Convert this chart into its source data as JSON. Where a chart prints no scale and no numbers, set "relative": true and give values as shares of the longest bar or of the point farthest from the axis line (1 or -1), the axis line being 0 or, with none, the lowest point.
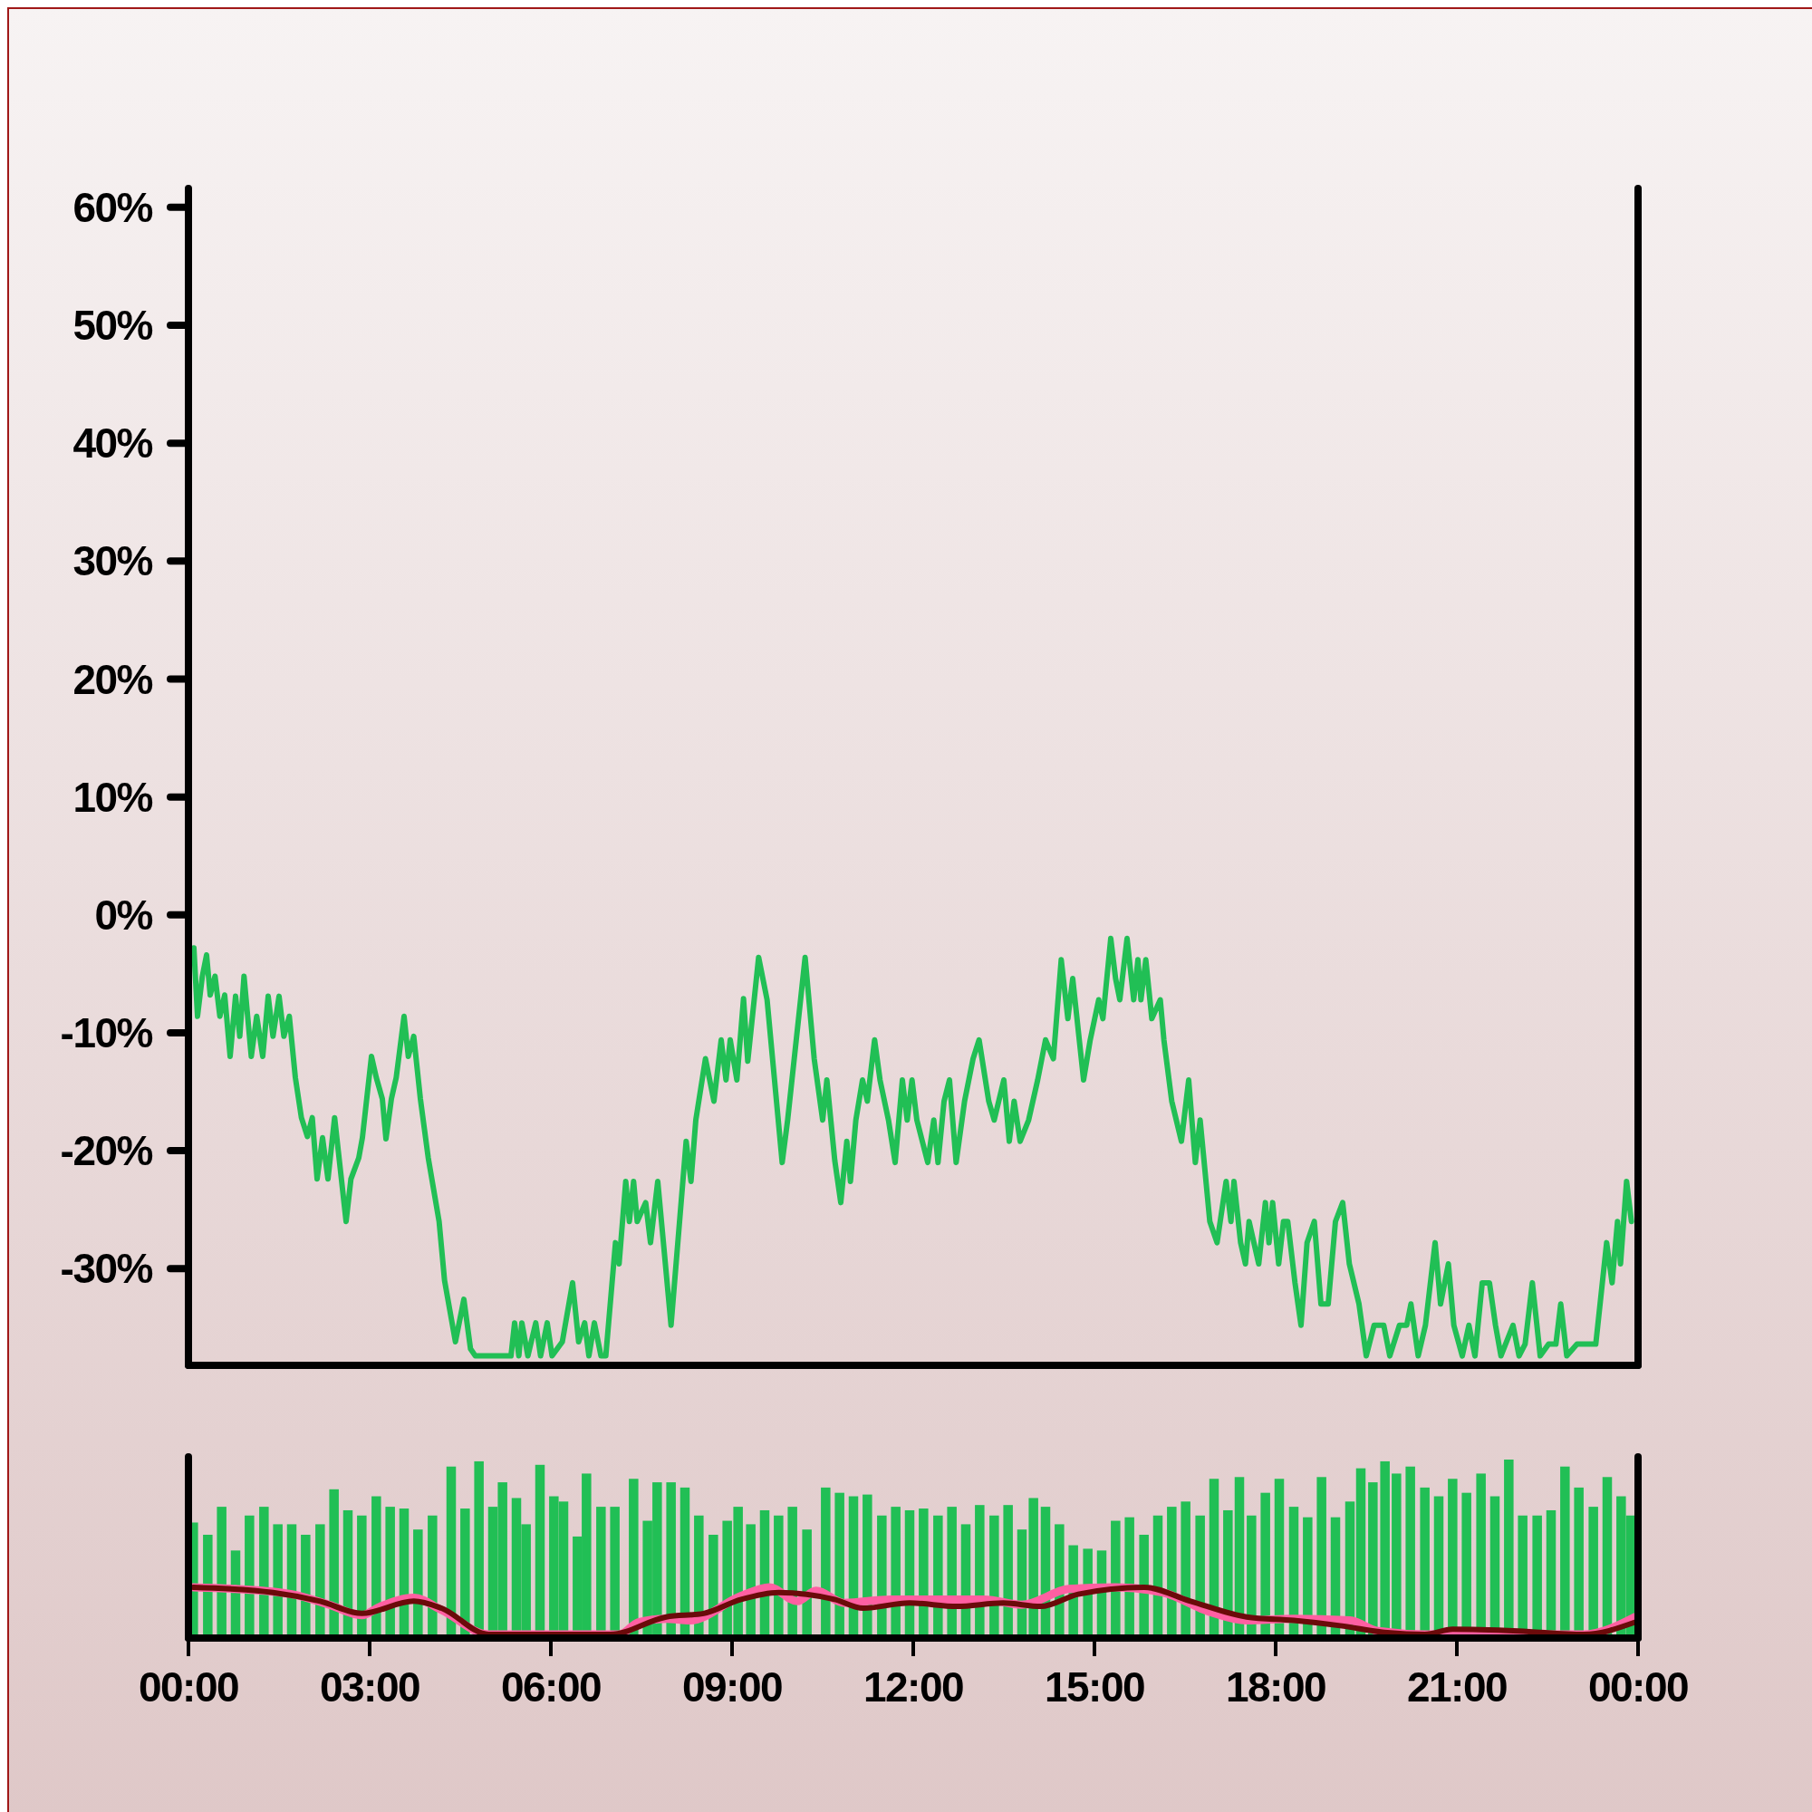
{
  "chart_data": [
    {
      "type": "line",
      "xlim": [
        0,
        24
      ],
      "ylim": [
        -38.2,
        61.6
      ],
      "yticks": [
        {
          "value": 60,
          "label": "60%"
        },
        {
          "value": 50,
          "label": "50%"
        },
        {
          "value": 40,
          "label": "40%"
        },
        {
          "value": 30,
          "label": "30%"
        },
        {
          "value": 20,
          "label": "20%"
        },
        {
          "value": 10,
          "label": "10%"
        },
        {
          "value": 0,
          "label": "0%"
        },
        {
          "value": -10,
          "label": "-10%"
        },
        {
          "value": -20,
          "label": "-20%"
        },
        {
          "value": -30,
          "label": "-30%"
        }
      ],
      "tick_labels": "y",
      "series": [
        {
          "color": "#21bf55",
          "x": [
            0.09,
            0.15,
            0.23,
            0.3,
            0.36,
            0.44,
            0.52,
            0.6,
            0.69,
            0.78,
            0.85,
            0.92,
            1.04,
            1.13,
            1.23,
            1.32,
            1.4,
            1.5,
            1.58,
            1.67,
            1.77,
            1.87,
            1.97,
            2.05,
            2.13,
            2.22,
            2.31,
            2.42,
            2.61,
            2.69,
            2.82,
            2.88,
            3.03,
            3.11,
            3.21,
            3.27,
            3.36,
            3.44,
            3.57,
            3.64,
            3.73,
            3.84,
            3.97,
            4.15,
            4.24,
            4.42,
            4.56,
            4.67,
            4.75,
            5.34,
            5.4,
            5.47,
            5.52,
            5.62,
            5.75,
            5.83,
            5.94,
            6.02,
            6.19,
            6.36,
            6.46,
            6.56,
            6.63,
            6.72,
            6.83,
            6.91,
            7.07,
            7.13,
            7.24,
            7.3,
            7.37,
            7.43,
            7.57,
            7.65,
            7.77,
            7.99,
            8.24,
            8.32,
            8.4,
            8.56,
            8.7,
            8.82,
            8.9,
            8.97,
            9.08,
            9.19,
            9.26,
            9.44,
            9.58,
            9.83,
            9.92,
            10.21,
            10.36,
            10.5,
            10.57,
            10.7,
            10.8,
            10.9,
            10.96,
            11.05,
            11.16,
            11.24,
            11.36,
            11.45,
            11.59,
            11.7,
            11.82,
            11.9,
            11.98,
            12.06,
            12.24,
            12.34,
            12.41,
            12.51,
            12.6,
            12.71,
            12.85,
            12.99,
            13.09,
            13.25,
            13.34,
            13.5,
            13.59,
            13.67,
            13.77,
            13.91,
            14.06,
            14.19,
            14.32,
            14.45,
            14.56,
            14.64,
            14.82,
            14.93,
            15.07,
            15.14,
            15.27,
            15.35,
            15.42,
            15.54,
            15.65,
            15.72,
            15.77,
            15.85,
            15.95,
            16.09,
            16.15,
            16.28,
            16.44,
            16.56,
            16.67,
            16.75,
            16.91,
            17.03,
            17.18,
            17.26,
            17.31,
            17.42,
            17.5,
            17.56,
            17.72,
            17.83,
            17.89,
            17.95,
            18.05,
            18.13,
            18.2,
            18.32,
            18.42,
            18.52,
            18.64,
            18.75,
            18.87,
            18.99,
            19.11,
            19.22,
            19.38,
            19.5,
            19.63,
            19.79,
            19.89,
            20.05,
            20.17,
            20.24,
            20.36,
            20.48,
            20.64,
            20.73,
            20.86,
            20.95,
            21.09,
            21.2,
            21.3,
            21.42,
            21.54,
            21.64,
            21.73,
            21.93,
            22.03,
            22.13,
            22.25,
            22.38,
            22.52,
            22.64,
            22.72,
            22.82,
            22.99,
            23.3,
            23.48,
            23.57,
            23.66,
            23.71,
            23.81,
            23.89
          ],
          "values": [
            -2.8,
            -8.6,
            -5.2,
            -3.4,
            -6.8,
            -5.2,
            -8.6,
            -6.8,
            -12,
            -6.9,
            -10.3,
            -5.2,
            -12,
            -8.6,
            -12,
            -6.9,
            -10.3,
            -6.9,
            -10.3,
            -8.6,
            -13.8,
            -17.2,
            -18.8,
            -17.2,
            -22.4,
            -18.9,
            -22.4,
            -17.2,
            -26,
            -22.4,
            -20.6,
            -18.9,
            -12,
            -13.8,
            -15.6,
            -19,
            -15.6,
            -13.8,
            -8.6,
            -12,
            -10.3,
            -15.6,
            -20.6,
            -26,
            -31,
            -36.2,
            -32.6,
            -36.8,
            -37.4,
            -37.4,
            -34.6,
            -37.4,
            -34.6,
            -37.4,
            -34.6,
            -37.4,
            -34.6,
            -37.4,
            -36.2,
            -31.2,
            -36.2,
            -34.6,
            -37.4,
            -34.6,
            -37.4,
            -37.4,
            -27.8,
            -29.6,
            -22.6,
            -26,
            -22.6,
            -26,
            -24.4,
            -27.8,
            -22.6,
            -34.8,
            -19.2,
            -22.6,
            -17.4,
            -12.2,
            -15.8,
            -10.6,
            -14,
            -10.6,
            -14,
            -7.1,
            -12.4,
            -3.6,
            -7.2,
            -21,
            -17.4,
            -3.6,
            -12.2,
            -17.4,
            -14,
            -20.8,
            -24.4,
            -19.2,
            -22.6,
            -17.4,
            -14,
            -15.8,
            -10.6,
            -14,
            -17.4,
            -21,
            -14,
            -17.4,
            -14,
            -17.4,
            -21,
            -17.4,
            -21,
            -15.8,
            -14,
            -21,
            -15.8,
            -12.2,
            -10.6,
            -15.8,
            -17.4,
            -14,
            -19.2,
            -15.8,
            -19.2,
            -17.4,
            -14,
            -10.6,
            -12.2,
            -3.8,
            -8.8,
            -5.4,
            -14,
            -10.6,
            -7.2,
            -8.8,
            -2,
            -5.4,
            -7.2,
            -2,
            -7.2,
            -3.8,
            -7.2,
            -3.8,
            -8.8,
            -7.2,
            -10.6,
            -15.8,
            -19.2,
            -14,
            -21,
            -17.4,
            -26,
            -27.8,
            -22.6,
            -26,
            -22.6,
            -27.8,
            -29.6,
            -26,
            -29.6,
            -24.4,
            -27.8,
            -24.4,
            -29.6,
            -26,
            -26,
            -31.2,
            -34.8,
            -27.8,
            -26,
            -33,
            -33,
            -26,
            -24.4,
            -29.6,
            -33,
            -37.4,
            -34.8,
            -34.8,
            -37.4,
            -34.8,
            -34.8,
            -33,
            -37.4,
            -34.8,
            -27.8,
            -33,
            -29.6,
            -34.8,
            -37.4,
            -34.8,
            -37.4,
            -31.2,
            -31.2,
            -34.8,
            -37.4,
            -34.8,
            -37.4,
            -36.4,
            -31.2,
            -37.4,
            -36.4,
            -36.4,
            -33,
            -37.4,
            -36.4,
            -36.4,
            -27.8,
            -31.2,
            -26,
            -29.6,
            -22.6,
            -26
          ]
        }
      ]
    },
    {
      "type": "bar",
      "relative": true,
      "xlim": [
        0,
        24
      ],
      "xticks": [
        {
          "value": 0,
          "label": "00:00"
        },
        {
          "value": 3,
          "label": "03:00"
        },
        {
          "value": 6,
          "label": "06:00"
        },
        {
          "value": 9,
          "label": "09:00"
        },
        {
          "value": 12,
          "label": "12:00"
        },
        {
          "value": 15,
          "label": "15:00"
        },
        {
          "value": 18,
          "label": "18:00"
        },
        {
          "value": 21,
          "label": "21:00"
        },
        {
          "value": 24,
          "label": "00:00"
        }
      ],
      "tick_labels": "x",
      "series": [
        {
          "type": "bar",
          "color": "#21bf55",
          "x": [
            0.08,
            0.32,
            0.55,
            0.78,
            1.01,
            1.25,
            1.48,
            1.71,
            1.94,
            2.18,
            2.41,
            2.64,
            2.87,
            3.11,
            3.34,
            3.57,
            3.8,
            4.04,
            4.35,
            4.58,
            4.81,
            5.04,
            5.2,
            5.43,
            5.59,
            5.82,
            6.05,
            6.21,
            6.44,
            6.59,
            6.83,
            7.06,
            7.37,
            7.6,
            7.76,
            7.99,
            8.22,
            8.45,
            8.69,
            8.92,
            9.1,
            9.31,
            9.54,
            9.77,
            10.0,
            10.24,
            10.55,
            10.78,
            11.01,
            11.24,
            11.48,
            11.71,
            11.94,
            12.17,
            12.41,
            12.64,
            12.87,
            13.1,
            13.34,
            13.57,
            13.8,
            13.99,
            14.19,
            14.42,
            14.65,
            14.89,
            15.12,
            15.35,
            15.58,
            15.82,
            16.05,
            16.28,
            16.51,
            16.75,
            16.98,
            17.21,
            17.4,
            17.6,
            17.83,
            18.06,
            18.3,
            18.53,
            18.76,
            18.99,
            19.23,
            19.41,
            19.61,
            19.81,
            20.0,
            20.23,
            20.47,
            20.7,
            20.93,
            21.16,
            21.4,
            21.63,
            21.86,
            22.09,
            22.33,
            22.56,
            22.79,
            23.02,
            23.26,
            23.49,
            23.72,
            23.88
          ],
          "values": [
            0.64,
            0.57,
            0.73,
            0.48,
            0.68,
            0.73,
            0.63,
            0.63,
            0.57,
            0.63,
            0.83,
            0.71,
            0.68,
            0.79,
            0.73,
            0.72,
            0.6,
            0.68,
            0.96,
            0.72,
            0.99,
            0.73,
            0.87,
            0.78,
            0.63,
            0.97,
            0.79,
            0.76,
            0.56,
            0.92,
            0.73,
            0.73,
            0.89,
            0.65,
            0.87,
            0.87,
            0.84,
            0.68,
            0.57,
            0.65,
            0.73,
            0.63,
            0.71,
            0.68,
            0.73,
            0.6,
            0.84,
            0.81,
            0.79,
            0.8,
            0.68,
            0.73,
            0.71,
            0.72,
            0.68,
            0.73,
            0.63,
            0.74,
            0.68,
            0.74,
            0.6,
            0.78,
            0.73,
            0.63,
            0.51,
            0.49,
            0.48,
            0.65,
            0.67,
            0.57,
            0.68,
            0.73,
            0.76,
            0.68,
            0.89,
            0.71,
            0.9,
            0.68,
            0.81,
            0.89,
            0.73,
            0.67,
            0.9,
            0.67,
            0.76,
            0.95,
            0.87,
            0.99,
            0.92,
            0.96,
            0.84,
            0.79,
            0.89,
            0.81,
            0.92,
            0.79,
            1.0,
            0.68,
            0.68,
            0.71,
            0.96,
            0.84,
            0.73,
            0.9,
            0.79,
            0.68
          ]
        },
        {
          "type": "line",
          "color": "#ff5fa2",
          "x": [
            0.08,
            0.78,
            1.71,
            2.33,
            2.87,
            3.18,
            3.73,
            4.19,
            4.97,
            7.14,
            7.45,
            7.91,
            8.3,
            9.15,
            9.62,
            10.08,
            10.39,
            10.86,
            11.63,
            13.18,
            13.8,
            14.58,
            15.35,
            16.13,
            16.9,
            17.52,
            18.3,
            19.23,
            19.69,
            20.47,
            23.1,
            23.95
          ],
          "values": [
            0.27,
            0.26,
            0.23,
            0.17,
            0.11,
            0.16,
            0.21,
            0.14,
            0,
            0,
            0.07,
            0.09,
            0.08,
            0.22,
            0.27,
            0.19,
            0.25,
            0.18,
            0.2,
            0.2,
            0.17,
            0.26,
            0.27,
            0.24,
            0.13,
            0.08,
            0.09,
            0.08,
            0.02,
            0,
            0,
            0.1
          ]
        },
        {
          "type": "line",
          "color": "#6b0a0a",
          "x": [
            0.08,
            1.4,
            2.18,
            2.87,
            3.73,
            4.19,
            4.97,
            6.98,
            7.91,
            8.53,
            9.15,
            9.77,
            10.7,
            11.17,
            11.94,
            12.72,
            13.49,
            14.11,
            14.73,
            15.82,
            16.59,
            17.52,
            18.3,
            19.07,
            19.85,
            20.47,
            20.93,
            22.02,
            23.1,
            23.95
          ],
          "values": [
            0.27,
            0.24,
            0.19,
            0.12,
            0.19,
            0.15,
            0,
            0,
            0.1,
            0.12,
            0.2,
            0.24,
            0.2,
            0.15,
            0.18,
            0.16,
            0.18,
            0.16,
            0.23,
            0.27,
            0.19,
            0.1,
            0.08,
            0.05,
            0.01,
            0,
            0.03,
            0.02,
            0,
            0.07
          ]
        }
      ]
    }
  ]
}
